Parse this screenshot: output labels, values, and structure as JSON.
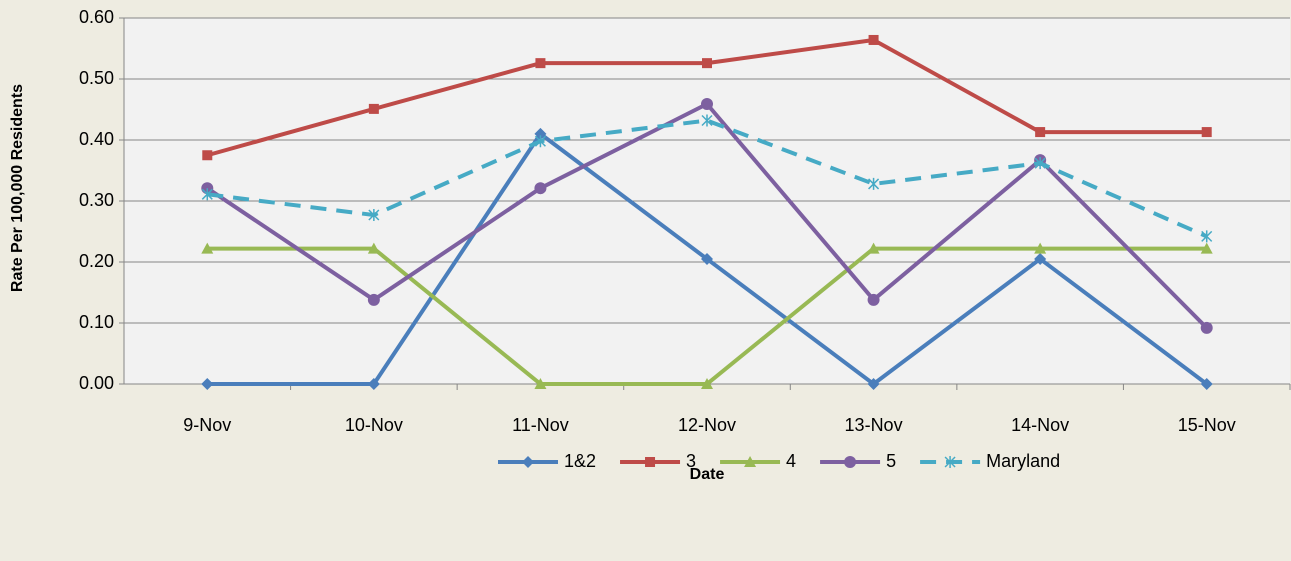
{
  "chart_data": {
    "type": "line",
    "x_label": "Date",
    "y_label": "Rate Per 100,000 Residents",
    "categories": [
      "9-Nov",
      "10-Nov",
      "11-Nov",
      "12-Nov",
      "13-Nov",
      "14-Nov",
      "15-Nov"
    ],
    "series": [
      {
        "name": "1&2",
        "color": "#4a7ebb",
        "marker": "diamond",
        "dashed": false,
        "values": [
          0,
          0,
          0.41,
          0.205,
          0,
          0.205,
          0
        ]
      },
      {
        "name": "3",
        "color": "#be4b48",
        "marker": "square",
        "dashed": false,
        "values": [
          0.375,
          0.451,
          0.526,
          0.526,
          0.564,
          0.413,
          0.413
        ]
      },
      {
        "name": "4",
        "color": "#98b954",
        "marker": "triangle",
        "dashed": false,
        "values": [
          0.222,
          0.222,
          0,
          0,
          0.222,
          0.222,
          0.222
        ]
      },
      {
        "name": "5",
        "color": "#7d60a0",
        "marker": "circle",
        "dashed": false,
        "values": [
          0.321,
          0.138,
          0.321,
          0.459,
          0.138,
          0.367,
          0.092
        ]
      },
      {
        "name": "Maryland",
        "color": "#46aac5",
        "marker": "asterisk",
        "dashed": true,
        "values": [
          0.311,
          0.277,
          0.398,
          0.432,
          0.328,
          0.362,
          0.242
        ]
      }
    ],
    "ylim": [
      0,
      0.6
    ],
    "yticks": [
      {
        "value": 0,
        "label": "0.00"
      },
      {
        "value": 0.1,
        "label": "0.10"
      },
      {
        "value": 0.2,
        "label": "0.20"
      },
      {
        "value": 0.3,
        "label": "0.30"
      },
      {
        "value": 0.4,
        "label": "0.40"
      },
      {
        "value": 0.5,
        "label": "0.50"
      },
      {
        "value": 0.6,
        "label": "0.60"
      }
    ],
    "grid": true,
    "legend": "bottom"
  }
}
